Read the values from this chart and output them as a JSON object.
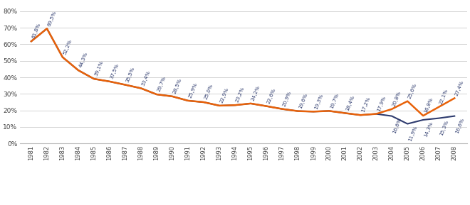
{
  "years": [
    1981,
    1982,
    1983,
    1984,
    1985,
    1986,
    1987,
    1988,
    1989,
    1990,
    1991,
    1992,
    1993,
    1994,
    1995,
    1996,
    1997,
    1998,
    1999,
    2000,
    2001,
    2002,
    2003,
    2004,
    2005,
    2006,
    2007,
    2008
  ],
  "mit_av": [
    0.618,
    0.695,
    0.522,
    0.443,
    0.391,
    0.375,
    0.355,
    0.334,
    0.297,
    0.285,
    0.259,
    0.25,
    0.229,
    0.232,
    0.242,
    0.226,
    0.209,
    0.196,
    0.193,
    0.197,
    0.184,
    0.172,
    0.179,
    0.208,
    0.256,
    0.168,
    0.221,
    0.274
  ],
  "ohne_av": [
    0.618,
    0.695,
    0.522,
    0.443,
    0.391,
    0.375,
    0.355,
    0.334,
    0.297,
    0.285,
    0.259,
    0.25,
    0.229,
    0.232,
    0.242,
    0.226,
    0.209,
    0.196,
    0.193,
    0.197,
    0.184,
    0.172,
    0.179,
    0.166,
    0.119,
    0.143,
    0.153,
    0.166
  ],
  "labels_mit_av": [
    "61,8%",
    "69,5%",
    "52,2%",
    "44,3%",
    "39,1%",
    "37,5%",
    "35,5%",
    "33,4%",
    "29,7%",
    "28,5%",
    "25,9%",
    "25,0%",
    "22,9%",
    "23,2%",
    "24,2%",
    "22,6%",
    "20,9%",
    "19,6%",
    "19,3%",
    "19,7%",
    "18,4%",
    "17,2%",
    "17,9%",
    "20,8%",
    "25,6%",
    "16,8%",
    "22,1%",
    "27,4%"
  ],
  "labels_ohne_av": [
    "",
    "",
    "",
    "",
    "",
    "",
    "",
    "",
    "",
    "",
    "",
    "",
    "",
    "",
    "",
    "",
    "",
    "",
    "",
    "",
    "",
    "",
    "",
    "16,6%",
    "11,9%",
    "14,3%",
    "15,3%",
    "16,6%"
  ],
  "color_mit_av": "#E8620A",
  "color_ohne_av": "#2E3B6E",
  "ylim": [
    0.0,
    0.85
  ],
  "yticks": [
    0.0,
    0.1,
    0.2,
    0.3,
    0.4,
    0.5,
    0.6,
    0.7,
    0.8
  ],
  "ytick_labels": [
    "0%",
    "10%",
    "20%",
    "30%",
    "40%",
    "50%",
    "60%",
    "70%",
    "80%"
  ]
}
